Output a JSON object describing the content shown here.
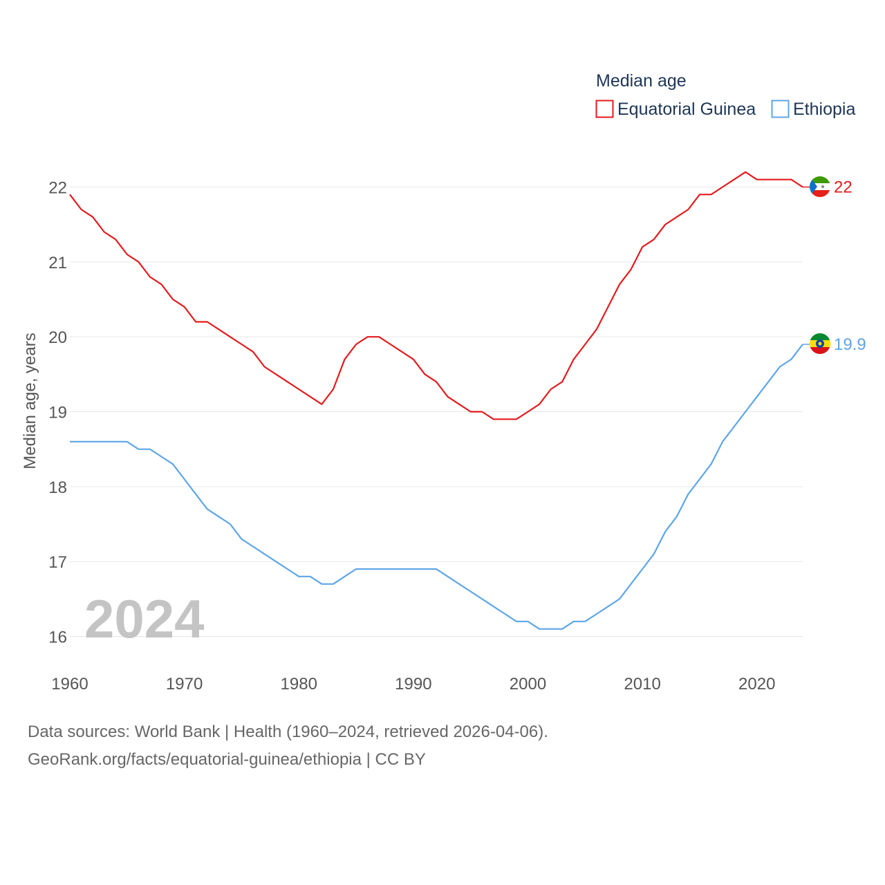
{
  "chart_data": {
    "type": "line",
    "legend_title": "Median age",
    "ylabel": "Median age, years",
    "xlabel": "",
    "xlim": [
      1960,
      2024
    ],
    "ylim": [
      15.8,
      22.45
    ],
    "year_watermark": "2024",
    "x_ticks": [
      1960,
      1970,
      1980,
      1990,
      2000,
      2010,
      2020
    ],
    "y_ticks": [
      16,
      17,
      18,
      19,
      20,
      21,
      22
    ],
    "x": [
      1960,
      1961,
      1962,
      1963,
      1964,
      1965,
      1966,
      1967,
      1968,
      1969,
      1970,
      1971,
      1972,
      1973,
      1974,
      1975,
      1976,
      1977,
      1978,
      1979,
      1980,
      1981,
      1982,
      1983,
      1984,
      1985,
      1986,
      1987,
      1988,
      1989,
      1990,
      1991,
      1992,
      1993,
      1994,
      1995,
      1996,
      1997,
      1998,
      1999,
      2000,
      2001,
      2002,
      2003,
      2004,
      2005,
      2006,
      2007,
      2008,
      2009,
      2010,
      2011,
      2012,
      2013,
      2014,
      2015,
      2016,
      2017,
      2018,
      2019,
      2020,
      2021,
      2022,
      2023,
      2024
    ],
    "series": [
      {
        "name": "Equatorial Guinea",
        "color": "#e41a1c",
        "end_label": "22",
        "values": [
          21.9,
          21.7,
          21.6,
          21.4,
          21.3,
          21.1,
          21.0,
          20.8,
          20.7,
          20.5,
          20.4,
          20.2,
          20.2,
          20.1,
          20.0,
          19.9,
          19.8,
          19.6,
          19.5,
          19.4,
          19.3,
          19.2,
          19.1,
          19.3,
          19.7,
          19.9,
          20.0,
          20.0,
          19.9,
          19.8,
          19.7,
          19.5,
          19.4,
          19.2,
          19.1,
          19.0,
          19.0,
          18.9,
          18.9,
          18.9,
          19.0,
          19.1,
          19.3,
          19.4,
          19.7,
          19.9,
          20.1,
          20.4,
          20.7,
          20.9,
          21.2,
          21.3,
          21.5,
          21.6,
          21.7,
          21.9,
          21.9,
          22.0,
          22.1,
          22.2,
          22.1,
          22.1,
          22.1,
          22.1,
          22.0
        ]
      },
      {
        "name": "Ethiopia",
        "color": "#5da5e6",
        "end_label": "19.9",
        "values": [
          18.6,
          18.6,
          18.6,
          18.6,
          18.6,
          18.6,
          18.5,
          18.5,
          18.4,
          18.3,
          18.1,
          17.9,
          17.7,
          17.6,
          17.5,
          17.3,
          17.2,
          17.1,
          17.0,
          16.9,
          16.8,
          16.8,
          16.7,
          16.7,
          16.8,
          16.9,
          16.9,
          16.9,
          16.9,
          16.9,
          16.9,
          16.9,
          16.9,
          16.8,
          16.7,
          16.6,
          16.5,
          16.4,
          16.3,
          16.2,
          16.2,
          16.1,
          16.1,
          16.1,
          16.2,
          16.2,
          16.3,
          16.4,
          16.5,
          16.7,
          16.9,
          17.1,
          17.4,
          17.6,
          17.9,
          18.1,
          18.3,
          18.6,
          18.8,
          19.0,
          19.2,
          19.4,
          19.6,
          19.7,
          19.9
        ]
      }
    ]
  },
  "footer": {
    "line1": "Data sources: World Bank | Health (1960–2024, retrieved 2026-04-06).",
    "line2": "GeoRank.org/facts/equatorial-guinea/ethiopia | CC BY"
  }
}
